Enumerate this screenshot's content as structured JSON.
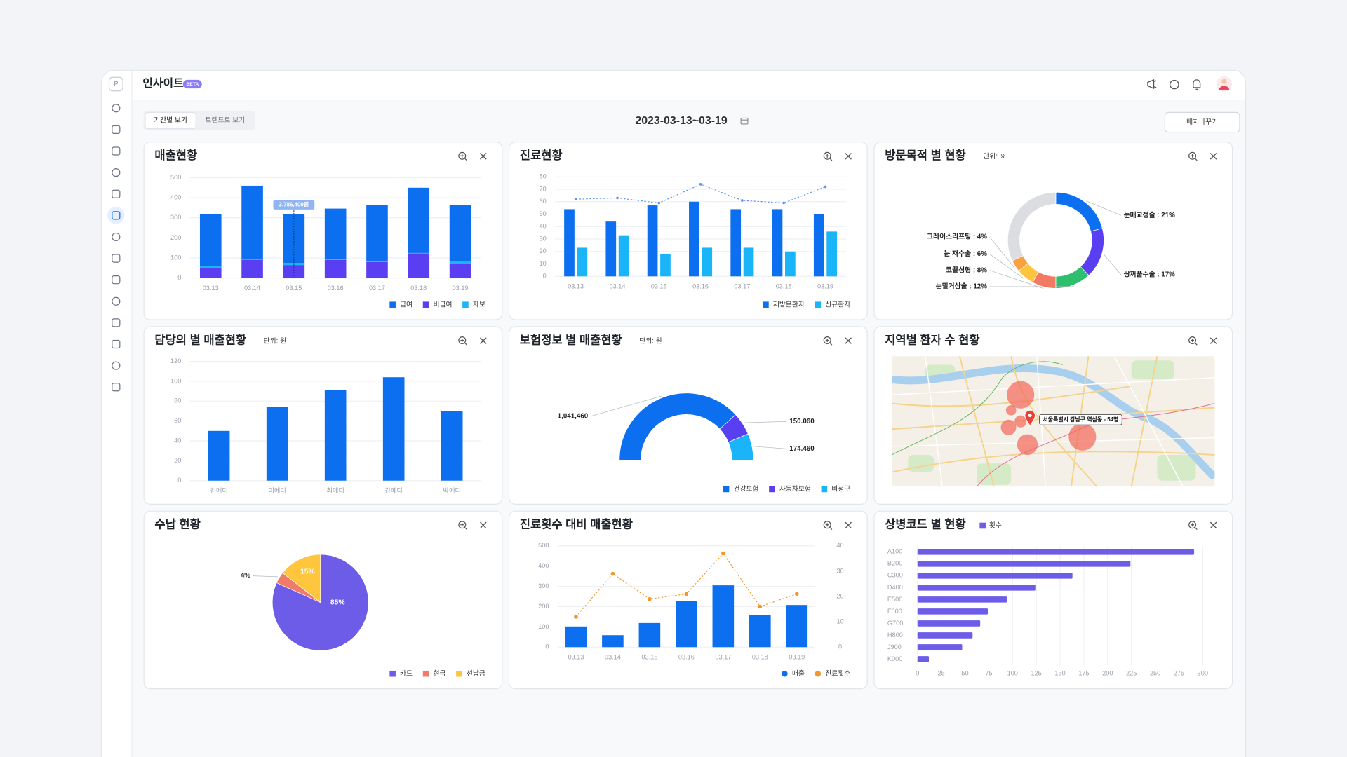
{
  "header": {
    "logo": "P",
    "title": "인사이트",
    "badge": "BETA"
  },
  "toolbar": {
    "tabs": [
      "기간별 보기",
      "트렌드로 보기"
    ],
    "date_range": "2023-03-13~03-19",
    "button": "배치바꾸기"
  },
  "chart_data": [
    {
      "type": "bar",
      "title": "매출현황",
      "stacked": true,
      "categories": [
        "03.13",
        "03.14",
        "03.15",
        "03.16",
        "03.17",
        "03.18",
        "03.19"
      ],
      "series": [
        {
          "name": "급여",
          "color": "#0b6ff0",
          "values": [
            260,
            365,
            245,
            253,
            278,
            325,
            278
          ]
        },
        {
          "name": "비급여",
          "color": "#5a3ef2",
          "values": [
            50,
            90,
            65,
            90,
            80,
            120,
            70
          ]
        },
        {
          "name": "자보",
          "color": "#1ab4f8",
          "values": [
            10,
            5,
            10,
            3,
            5,
            5,
            15
          ]
        }
      ],
      "ylim": [
        0,
        500
      ],
      "yticks": [
        0,
        100,
        200,
        300,
        400,
        500
      ],
      "grid": true,
      "legend": "bottom-right",
      "tooltip": "3,786,400원"
    },
    {
      "type": "bar",
      "title": "진료현황",
      "categories": [
        "03.13",
        "03.14",
        "03.15",
        "03.16",
        "03.17",
        "03.18",
        "03.19"
      ],
      "series": [
        {
          "name": "재방문환자",
          "color": "#0b6ff0",
          "values": [
            54,
            44,
            57,
            60,
            54,
            54,
            50
          ]
        },
        {
          "name": "신규환자",
          "color": "#1ab4f8",
          "values": [
            23,
            33,
            18,
            23,
            23,
            20,
            36
          ]
        },
        {
          "type": "line",
          "color": "#5b95ee",
          "values": [
            62,
            63,
            59,
            74,
            61,
            59,
            72
          ]
        }
      ],
      "ylim": [
        0,
        80
      ],
      "yticks": [
        0,
        10,
        20,
        30,
        40,
        50,
        60,
        70,
        80
      ],
      "grid": true,
      "legend": "bottom-right"
    },
    {
      "type": "donut",
      "title": "방문목적 별 현황",
      "unit": "단위: %",
      "values": [
        21,
        17,
        12,
        8,
        6,
        4,
        32
      ],
      "value_labels": [
        "눈매교정술 : 21%",
        "쌍꺼풀수술 : 17%",
        "눈밑거상술 : 12%",
        "코끝성형 : 8%",
        "눈 재수술 : 6%",
        "그레이스리프팅 : 4%",
        null
      ],
      "colors": [
        "#0b6ff0",
        "#5a3ef2",
        "#2ebf6e",
        "#f27a63",
        "#fdc43f",
        "#f9a03f",
        "#dcdde0"
      ]
    },
    {
      "type": "bar",
      "title": "담당의 별 매출현황",
      "unit": "단위: 원",
      "categories": [
        "김메디",
        "이메디",
        "최메디",
        "강메디",
        "박메디"
      ],
      "values": [
        50,
        74,
        91,
        104,
        70
      ],
      "color": "#0b6ff0",
      "ylim": [
        0,
        120
      ],
      "yticks": [
        0,
        20,
        40,
        60,
        80,
        100,
        120
      ],
      "grid": true
    },
    {
      "type": "donut",
      "half": true,
      "title": "보험정보 별 매출현황",
      "unit": "단위: 원",
      "categories": [
        "건강보험",
        "자동차보험",
        "비청구"
      ],
      "values": [
        1041460,
        150060,
        174460
      ],
      "value_labels": [
        "1,041,460",
        "150.060",
        "174.460"
      ],
      "colors": [
        "#0b6ff0",
        "#5a3ef2",
        "#1ab4f8"
      ],
      "legend": "bottom-right"
    },
    {
      "type": "map",
      "title": "지역별 환자 수 현황",
      "annotation": "서울특별시 강남구 역삼동 - 54명"
    },
    {
      "type": "pie",
      "title": "수납 현황",
      "categories": [
        "카드",
        "현금",
        "선납금"
      ],
      "values": [
        85,
        4,
        15
      ],
      "value_labels": [
        "85%",
        "4%",
        "15%"
      ],
      "colors": [
        "#6c5ce7",
        "#f07b68",
        "#fec53d"
      ],
      "legend": "bottom-right"
    },
    {
      "type": "bar",
      "title": "진료횟수 대비 매출현황",
      "categories": [
        "03.13",
        "03.14",
        "03.15",
        "03.16",
        "03.17",
        "03.18",
        "03.19"
      ],
      "series": [
        {
          "name": "매출",
          "color": "#0b6ff0",
          "values": [
            102,
            59,
            119,
            229,
            305,
            157,
            208
          ]
        },
        {
          "name": "진료횟수",
          "type": "line",
          "axis": "y2",
          "color": "#f5962a",
          "values": [
            12,
            29,
            19,
            21,
            37,
            16,
            21
          ]
        }
      ],
      "ylim": [
        0,
        500
      ],
      "yticks": [
        0,
        100,
        200,
        300,
        400,
        500
      ],
      "y2lim": [
        0,
        40
      ],
      "y2ticks": [
        0,
        10,
        20,
        30,
        40
      ],
      "grid": true,
      "legend": "bottom-right",
      "legend_marker": "circle"
    },
    {
      "type": "bar",
      "orientation": "horizontal",
      "title": "상병코드 별 현황",
      "categories": [
        "A100",
        "B200",
        "C300",
        "D400",
        "E500",
        "F600",
        "G700",
        "H800",
        "J900",
        "K000"
      ],
      "series": [
        {
          "name": "횟수",
          "color": "#6c5ce7",
          "values": [
            291,
            224,
            163,
            124,
            94,
            74,
            66,
            58,
            47,
            12
          ]
        }
      ],
      "xlim": [
        0,
        300
      ],
      "xticks": [
        0,
        25,
        50,
        75,
        100,
        125,
        150,
        175,
        200,
        225,
        250,
        275,
        300
      ],
      "grid": true,
      "legend": "top-left"
    }
  ]
}
